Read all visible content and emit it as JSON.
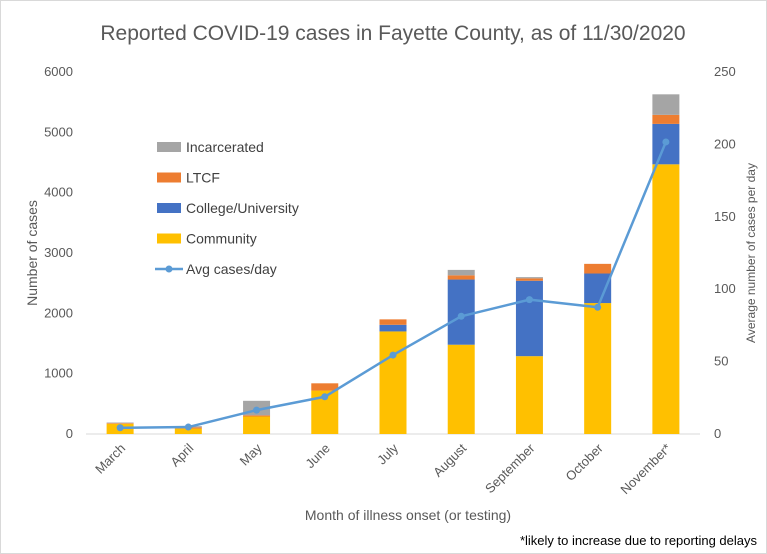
{
  "chart_data": {
    "type": "bar",
    "title": "Reported COVID-19 cases in Fayette County, as of 11/30/2020",
    "xlabel": "Month  of illness onset (or testing)",
    "ylabel": "Number of cases",
    "y2label": "Average number of cases per day",
    "footnote": "*likely to increase due to reporting delays",
    "categories": [
      "March",
      "April",
      "May",
      "June",
      "July",
      "August",
      "September",
      "October",
      "November*"
    ],
    "ylim": [
      0,
      6000
    ],
    "yticks": [
      "0",
      "1000",
      "2000",
      "3000",
      "4000",
      "5000",
      "6000"
    ],
    "y2lim": [
      0,
      250
    ],
    "y2ticks": [
      "0",
      "50",
      "100",
      "150",
      "200",
      "250"
    ],
    "stacked": true,
    "legend_position": "upper-left",
    "series": [
      {
        "name": "Community",
        "kind": "bar",
        "axis": "left",
        "color": "#FFC000",
        "values": [
          170,
          90,
          290,
          720,
          1700,
          1480,
          1290,
          2170,
          4470
        ]
      },
      {
        "name": "College/University",
        "kind": "bar",
        "axis": "left",
        "color": "#4472C4",
        "values": [
          0,
          0,
          0,
          0,
          110,
          1080,
          1250,
          490,
          670
        ]
      },
      {
        "name": "LTCF",
        "kind": "bar",
        "axis": "left",
        "color": "#ED7D31",
        "values": [
          10,
          20,
          20,
          120,
          90,
          70,
          40,
          160,
          150
        ]
      },
      {
        "name": "Incarcerated",
        "kind": "bar",
        "axis": "left",
        "color": "#A5A5A5",
        "values": [
          10,
          20,
          240,
          0,
          0,
          90,
          20,
          0,
          340
        ]
      },
      {
        "name": "Avg cases/day",
        "kind": "line",
        "axis": "right",
        "color": "#5B9BD5",
        "values": [
          4.3,
          4.8,
          16.5,
          25.7,
          54.5,
          81.3,
          92.8,
          87.5,
          201.7
        ]
      }
    ]
  }
}
